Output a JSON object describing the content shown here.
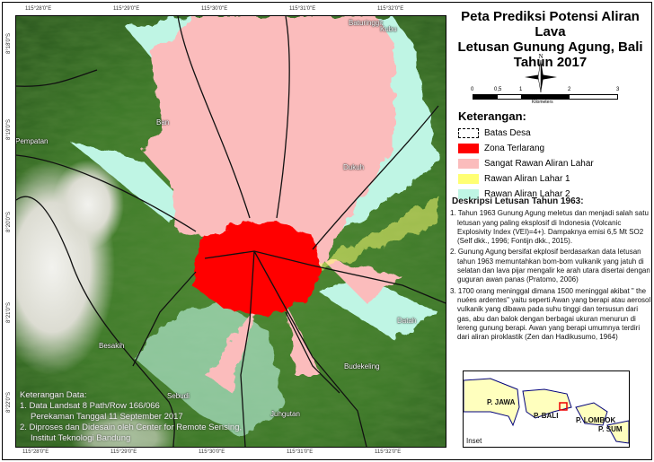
{
  "title": [
    "Peta Prediksi Potensi Aliran Lava",
    "Letusan Gunung Agung, Bali",
    "Tahun 2017"
  ],
  "north_label": "N",
  "scale_bar": {
    "ticks": [
      "0",
      "0,5",
      "1",
      "2",
      "3"
    ],
    "unit": "Kilometers"
  },
  "legend": {
    "heading": "Keterangan:",
    "items": [
      {
        "label": "Batas Desa",
        "style": "dashed-outline"
      },
      {
        "label": "Zona Terlarang",
        "color": "#ff0000"
      },
      {
        "label": "Sangat Rawan Aliran Lahar",
        "color": "#fbbcbc"
      },
      {
        "label": "Rawan Aliran Lahar 1",
        "color": "#ffff73"
      },
      {
        "label": "Rawan Aliran Lahar 2",
        "color": "#bff5e4"
      }
    ]
  },
  "description": {
    "heading": "Deskripsi Letusan Tahun 1963:",
    "items": [
      "1. Tahun 1963 Gunung Agung meletus dan menjadi salah satu letusan yang paling eksplosif di Indonesia (Volcanic Explosivity Index (VEI)=4+). Dampaknya emisi 6,5 Mt SO2 (Self dkk., 1996; Fontijn dkk., 2015).",
      "2. Gunung Agung bersifat ekplosif berdasarkan data letusan tahun 1963 memuntahkan bom-bom vulkanik yang jatuh di selatan dan lava pijar mengalir ke arah utara disertai dengan guguran awan panas (Pratomo, 2006)",
      "3. 1700 orang meninggal dimana 1500 meninggal akibat \" the nuées ardentes\" yaitu seperti Awan yang berapi atau  aerosol vulkanik yang dibawa pada suhu tinggi dan tersusun dari gas, abu dan balok dengan berbagai ukuran menurun di lereng gunung berapi. Awan yang berapi umumnya terdiri dari aliran piroklastik (Zen dan Hadikusumo, 1964)"
    ]
  },
  "axis": {
    "lon": [
      "115°28'0\"E",
      "115°29'0\"E",
      "115°30'0\"E",
      "115°31'0\"E",
      "115°32'0\"E"
    ],
    "lat": [
      "8°18'0\"S",
      "8°19'0\"S",
      "8°20'0\"S",
      "8°21'0\"S",
      "8°22'0\"S"
    ]
  },
  "villages": [
    "Baturinggit",
    "Kubu",
    "Ban",
    "Pempatan",
    "Dukuh",
    "Besakih",
    "Datah",
    "Sebudi",
    "Budekeling",
    "Jungutan"
  ],
  "data_notes": {
    "heading": "Keterangan Data:",
    "lines": [
      "1. Data Landsat 8 Path/Row 166/066",
      "Perekaman Tanggal 11 September 2017",
      "2. Diproses dan Didesain oleh Center for Remote Sensing,",
      "Institut Teknologi Bandung"
    ]
  },
  "inset": {
    "label": "Inset",
    "islands": [
      "P. JAWA",
      "P. BALI",
      "P. LOMBOK",
      "P. SUM"
    ]
  }
}
